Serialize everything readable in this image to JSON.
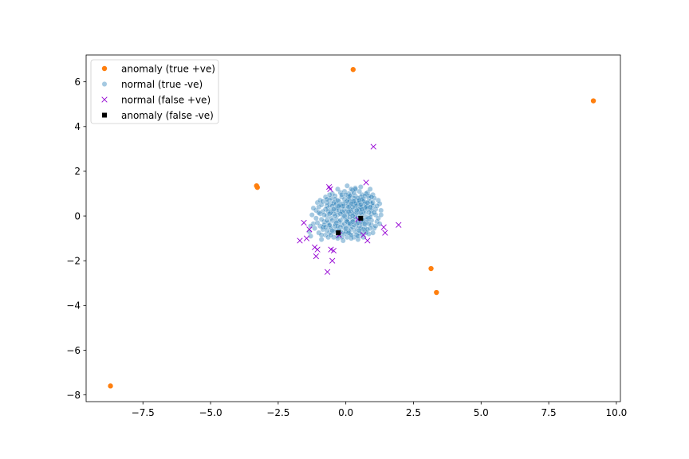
{
  "chart_data": {
    "type": "scatter",
    "title": "",
    "xlabel": "",
    "ylabel": "",
    "xlim": [
      -9.6,
      10.15
    ],
    "ylim": [
      -8.3,
      7.2
    ],
    "xticks": [
      -7.5,
      -5.0,
      -2.5,
      0.0,
      2.5,
      5.0,
      7.5,
      10.0
    ],
    "xtick_labels": [
      "−7.5",
      "−5.0",
      "−2.5",
      "0.0",
      "2.5",
      "5.0",
      "7.5",
      "10.0"
    ],
    "yticks": [
      -8,
      -6,
      -4,
      -2,
      0,
      2,
      4,
      6
    ],
    "ytick_labels": [
      "−8",
      "−6",
      "−4",
      "−2",
      "0",
      "2",
      "4",
      "6"
    ],
    "grid": false,
    "legend_position": "top-left",
    "series": [
      {
        "name": "anomaly (true +ve)",
        "marker": "circle",
        "color": "#ff7f0e",
        "alpha": 1,
        "points": [
          [
            0.27,
            6.55
          ],
          [
            9.15,
            5.15
          ],
          [
            -3.3,
            1.35
          ],
          [
            -3.27,
            1.28
          ],
          [
            3.15,
            -2.35
          ],
          [
            3.35,
            -3.42
          ],
          [
            -8.7,
            -7.6
          ]
        ]
      },
      {
        "name": "normal (true -ve)",
        "marker": "circle",
        "color": "#1f77b4",
        "alpha": 0.4,
        "points": [
          [
            -0.15,
            0.4
          ],
          [
            0.2,
            -0.3
          ],
          [
            0.55,
            0.85
          ],
          [
            -0.6,
            -0.45
          ],
          [
            0.05,
            0.05
          ],
          [
            0.9,
            0.35
          ],
          [
            -0.95,
            0.1
          ],
          [
            0.35,
            1.25
          ],
          [
            -0.3,
            -0.9
          ],
          [
            0.7,
            -0.65
          ],
          [
            0.1,
            0.75
          ],
          [
            -0.45,
            0.55
          ],
          [
            1.1,
            0.05
          ],
          [
            -1.2,
            -0.35
          ],
          [
            0.45,
            -1.05
          ],
          [
            -0.05,
            -0.55
          ],
          [
            0.8,
            1.05
          ],
          [
            -0.75,
            0.85
          ],
          [
            0.25,
            0.15
          ],
          [
            -0.2,
            1.05
          ],
          [
            0.6,
            -0.15
          ],
          [
            -0.55,
            -0.1
          ],
          [
            0.0,
            -0.2
          ],
          [
            0.95,
            -0.4
          ],
          [
            -1.0,
            -0.75
          ],
          [
            0.3,
            0.5
          ],
          [
            -0.35,
            0.2
          ],
          [
            0.15,
            -0.8
          ],
          [
            0.75,
            0.6
          ],
          [
            -0.65,
            0.35
          ],
          [
            1.2,
            0.7
          ],
          [
            -0.1,
            -1.1
          ],
          [
            0.5,
            0.25
          ],
          [
            -0.85,
            -0.6
          ],
          [
            0.4,
            -0.55
          ],
          [
            -0.25,
            0.65
          ],
          [
            0.05,
            1.35
          ],
          [
            0.65,
            -0.95
          ],
          [
            -1.3,
            -0.9
          ],
          [
            0.85,
            -0.1
          ],
          [
            -0.4,
            -0.35
          ],
          [
            0.2,
            0.95
          ],
          [
            -0.7,
            0.0
          ],
          [
            1.0,
            0.95
          ],
          [
            -0.15,
            -0.4
          ],
          [
            0.35,
            -0.2
          ],
          [
            -0.5,
            1.0
          ],
          [
            0.6,
            0.45
          ],
          [
            -1.1,
            0.25
          ],
          [
            0.1,
            -0.45
          ],
          [
            1.3,
            0.25
          ],
          [
            -0.3,
            0.4
          ],
          [
            0.5,
            -0.75
          ],
          [
            -0.9,
            -1.05
          ],
          [
            0.25,
            1.15
          ],
          [
            -0.05,
            0.3
          ],
          [
            0.75,
            -0.3
          ],
          [
            -0.6,
            -0.75
          ],
          [
            0.95,
            0.55
          ],
          [
            -0.2,
            -0.7
          ],
          [
            0.4,
            0.7
          ],
          [
            -1.05,
            0.6
          ],
          [
            0.15,
            0.5
          ],
          [
            0.85,
            -0.8
          ],
          [
            -0.35,
            -0.15
          ],
          [
            0.55,
            1.3
          ],
          [
            -0.8,
            -0.25
          ],
          [
            0.0,
            0.6
          ],
          [
            1.15,
            -0.25
          ],
          [
            -0.45,
            -0.95
          ],
          [
            0.3,
            -0.95
          ],
          [
            -0.15,
            0.85
          ],
          [
            0.7,
            0.15
          ],
          [
            -1.25,
            0.05
          ],
          [
            0.45,
            0.05
          ],
          [
            -0.6,
            0.7
          ],
          [
            0.2,
            -0.6
          ],
          [
            0.9,
            1.2
          ],
          [
            -0.95,
            -0.45
          ],
          [
            0.05,
            -0.95
          ],
          [
            0.65,
            0.75
          ],
          [
            -0.25,
            -0.25
          ],
          [
            1.05,
            -0.55
          ],
          [
            -0.7,
            0.45
          ],
          [
            0.35,
            0.35
          ],
          [
            -0.1,
            -0.05
          ],
          [
            0.5,
            -0.45
          ],
          [
            -0.4,
            0.9
          ],
          [
            0.8,
            0.3
          ],
          [
            -0.55,
            -0.55
          ],
          [
            0.1,
            1.0
          ],
          [
            1.25,
            0.55
          ],
          [
            -1.15,
            -0.55
          ],
          [
            0.25,
            -0.15
          ],
          [
            -0.3,
            0.05
          ],
          [
            0.6,
            0.95
          ],
          [
            -0.75,
            -0.85
          ],
          [
            0.4,
            -0.35
          ],
          [
            0.0,
            0.2
          ],
          [
            0.95,
            -0.2
          ],
          [
            -0.2,
            0.5
          ],
          [
            0.7,
            -0.5
          ],
          [
            -0.5,
            0.25
          ],
          [
            0.15,
            0.3
          ],
          [
            -0.85,
            0.2
          ],
          [
            0.45,
            0.55
          ],
          [
            1.0,
            0.45
          ],
          [
            -0.35,
            -0.6
          ],
          [
            0.3,
            0.1
          ],
          [
            -0.05,
            1.1
          ],
          [
            0.55,
            -0.25
          ],
          [
            -0.65,
            -0.3
          ],
          [
            0.85,
            0.8
          ],
          [
            -1.0,
            0.4
          ],
          [
            0.2,
            -1.0
          ],
          [
            -0.25,
            -0.85
          ],
          [
            0.75,
            1.0
          ],
          [
            -0.45,
            0.1
          ],
          [
            0.1,
            -0.3
          ],
          [
            1.1,
            0.3
          ],
          [
            -0.9,
            -0.15
          ],
          [
            0.35,
            0.9
          ],
          [
            0.6,
            -0.8
          ],
          [
            -0.15,
            -0.75
          ],
          [
            0.5,
            0.6
          ],
          [
            -0.6,
            0.5
          ],
          [
            0.05,
            0.45
          ],
          [
            0.9,
            -0.55
          ],
          [
            -0.3,
            1.2
          ],
          [
            0.25,
            -0.5
          ],
          [
            -1.35,
            -0.7
          ],
          [
            0.65,
            0.2
          ],
          [
            -0.4,
            -0.45
          ],
          [
            0.15,
            0.7
          ],
          [
            1.05,
            0.8
          ],
          [
            -0.7,
            -0.65
          ],
          [
            0.45,
            -0.1
          ],
          [
            -0.1,
            0.15
          ],
          [
            0.8,
            -0.15
          ],
          [
            -0.55,
            0.8
          ],
          [
            0.3,
            1.05
          ],
          [
            -0.2,
            -0.5
          ],
          [
            0.95,
            0.1
          ],
          [
            -0.8,
            0.05
          ],
          [
            0.1,
            -0.65
          ],
          [
            0.55,
            0.4
          ],
          [
            -0.05,
            -0.35
          ],
          [
            0.4,
            0.15
          ],
          [
            -0.5,
            -0.2
          ],
          [
            0.7,
            0.55
          ],
          [
            -0.95,
            0.7
          ],
          [
            0.2,
            0.25
          ],
          [
            0.85,
            -0.35
          ],
          [
            -0.35,
            0.35
          ],
          [
            0.05,
            -0.15
          ],
          [
            -0.65,
            -0.95
          ],
          [
            1.2,
            -0.1
          ],
          [
            0.35,
            -0.7
          ],
          [
            -0.15,
            0.95
          ],
          [
            0.6,
            0.05
          ],
          [
            -1.05,
            -0.3
          ],
          [
            0.25,
            0.65
          ],
          [
            0.75,
            -0.75
          ],
          [
            -0.45,
            0.6
          ],
          [
            0.0,
            -0.55
          ],
          [
            0.9,
            0.65
          ],
          [
            -0.25,
            0.25
          ],
          [
            0.5,
            1.1
          ],
          [
            -0.75,
            0.3
          ],
          [
            0.15,
            -0.05
          ],
          [
            1.0,
            -0.75
          ],
          [
            -0.6,
            -0.4
          ],
          [
            0.4,
            0.45
          ],
          [
            -0.1,
            0.55
          ],
          [
            0.65,
            -0.6
          ],
          [
            -0.85,
            -0.5
          ],
          [
            0.3,
            -0.4
          ],
          [
            1.15,
            0.45
          ],
          [
            -0.3,
            -1.0
          ],
          [
            0.45,
            0.8
          ],
          [
            -0.5,
            0.45
          ],
          [
            0.1,
            0.85
          ],
          [
            0.8,
            0.45
          ],
          [
            -0.2,
            -0.2
          ],
          [
            0.55,
            -0.55
          ],
          [
            -0.7,
            0.6
          ],
          [
            0.05,
            0.65
          ],
          [
            0.95,
            0.25
          ],
          [
            -0.4,
            0.75
          ],
          [
            0.2,
            -0.85
          ],
          [
            0.7,
            0.35
          ],
          [
            -1.1,
            -0.1
          ],
          [
            0.35,
            0.55
          ],
          [
            -0.05,
            -0.8
          ],
          [
            0.6,
            -0.35
          ],
          [
            -0.55,
            0.15
          ],
          [
            0.85,
            0.9
          ],
          [
            0.15,
            0.1
          ],
          [
            -0.35,
            0.55
          ],
          [
            0.5,
            0.3
          ],
          [
            -0.8,
            -0.4
          ],
          [
            0.25,
            0.4
          ],
          [
            1.05,
            0.15
          ],
          [
            -0.15,
            0.2
          ],
          [
            0.4,
            -0.85
          ],
          [
            -0.6,
            0.95
          ],
          [
            0.75,
            -0.05
          ],
          [
            -0.9,
            0.5
          ],
          [
            0.1,
            0.4
          ],
          [
            0.65,
            0.65
          ],
          [
            -0.25,
            -0.65
          ],
          [
            0.3,
            0.8
          ],
          [
            -0.45,
            -0.7
          ],
          [
            0.9,
            -0.05
          ],
          [
            0.0,
            -0.7
          ],
          [
            -0.7,
            -0.2
          ],
          [
            0.55,
            0.15
          ],
          [
            -0.1,
            0.45
          ],
          [
            0.8,
            -0.6
          ],
          [
            -0.3,
            0.7
          ],
          [
            0.45,
            -0.3
          ],
          [
            1.25,
            -0.35
          ],
          [
            -1.2,
            0.35
          ],
          [
            0.2,
            1.2
          ],
          [
            0.6,
            0.75
          ],
          [
            -0.55,
            -0.85
          ],
          [
            0.05,
            -0.25
          ],
          [
            0.95,
            0.85
          ],
          [
            -0.4,
            0.0
          ],
          [
            0.35,
            -0.05
          ],
          [
            -0.85,
            0.65
          ],
          [
            0.15,
            -0.35
          ],
          [
            0.7,
            0.9
          ],
          [
            -0.2,
            0.1
          ],
          [
            0.5,
            -0.65
          ],
          [
            -0.65,
            0.2
          ],
          [
            1.1,
            -0.45
          ],
          [
            0.25,
            0.0
          ],
          [
            -0.05,
            0.75
          ],
          [
            0.4,
            0.25
          ],
          [
            -0.75,
            -0.5
          ],
          [
            0.85,
            0.15
          ],
          [
            0.1,
            0.2
          ],
          [
            -0.35,
            -0.3
          ],
          [
            0.6,
            0.3
          ],
          [
            -1.0,
            0.15
          ],
          [
            0.3,
            0.65
          ],
          [
            0.75,
            0.4
          ],
          [
            -0.5,
            -0.65
          ],
          [
            0.0,
            0.95
          ],
          [
            1.3,
            0.05
          ],
          [
            -0.25,
            0.45
          ],
          [
            0.45,
            -0.9
          ],
          [
            0.9,
            0.4
          ],
          [
            -0.6,
            0.1
          ],
          [
            0.2,
            0.55
          ],
          [
            -0.15,
            -0.95
          ],
          [
            0.65,
            -0.2
          ],
          [
            -0.9,
            -0.85
          ],
          [
            0.35,
            1.2
          ],
          [
            0.1,
            -0.75
          ],
          [
            0.8,
            0.6
          ],
          [
            -0.45,
            0.3
          ],
          [
            -1.3,
            -0.45
          ],
          [
            1.0,
            0.6
          ],
          [
            0.5,
            0.7
          ],
          [
            -0.3,
            -0.45
          ],
          [
            0.15,
            0.9
          ],
          [
            0.7,
            -0.35
          ],
          [
            -0.7,
            0.75
          ],
          [
            0.25,
            -0.25
          ],
          [
            -0.05,
            0.0
          ],
          [
            0.55,
            0.5
          ]
        ]
      },
      {
        "name": "normal (false +ve)",
        "marker": "x",
        "color": "#9400d3",
        "alpha": 1,
        "points": [
          [
            1.02,
            3.1
          ],
          [
            0.75,
            1.5
          ],
          [
            -0.62,
            1.3
          ],
          [
            -0.58,
            1.2
          ],
          [
            -1.55,
            -0.3
          ],
          [
            -1.35,
            -0.6
          ],
          [
            -1.7,
            -1.1
          ],
          [
            -1.45,
            -1.0
          ],
          [
            -1.15,
            -1.4
          ],
          [
            -1.05,
            -1.5
          ],
          [
            -1.1,
            -1.8
          ],
          [
            -0.55,
            -1.5
          ],
          [
            -0.45,
            -1.55
          ],
          [
            -0.5,
            -2.0
          ],
          [
            -0.68,
            -2.5
          ],
          [
            1.4,
            -0.5
          ],
          [
            1.45,
            -0.75
          ],
          [
            1.95,
            -0.4
          ],
          [
            0.8,
            -1.1
          ],
          [
            0.65,
            -0.85
          ],
          [
            0.45,
            -0.15
          ],
          [
            -0.25,
            -0.85
          ]
        ]
      },
      {
        "name": "anomaly (false -ve)",
        "marker": "square",
        "color": "#000000",
        "alpha": 1,
        "points": [
          [
            0.55,
            -0.1
          ],
          [
            -0.28,
            -0.75
          ]
        ]
      }
    ]
  }
}
